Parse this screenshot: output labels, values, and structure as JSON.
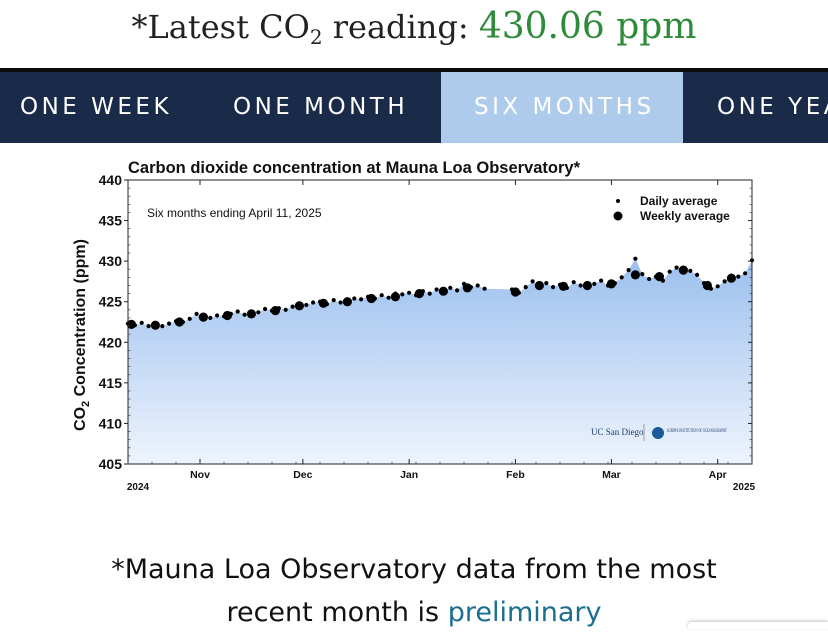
{
  "header": {
    "prefix": "*Latest CO",
    "subscript": "2",
    "suffix": " reading: ",
    "value": "430.06 ppm",
    "value_color": "#2e8b3a"
  },
  "tabs": [
    {
      "label": "ONE WEEK",
      "active": false
    },
    {
      "label": "ONE MONTH",
      "active": false
    },
    {
      "label": "SIX MONTHS",
      "active": true
    },
    {
      "label": "ONE YEAR",
      "active": false
    }
  ],
  "chart_data": {
    "type": "scatter",
    "title": "Carbon dioxide concentration at Mauna Loa Observatory*",
    "subtitle": "Six months ending April 11, 2025",
    "ylabel_prefix": "CO",
    "ylabel_sub": "2",
    "ylabel_suffix": " Concentration (ppm)",
    "ylim": [
      405,
      440
    ],
    "yticks": [
      405,
      410,
      415,
      420,
      425,
      430,
      435,
      440
    ],
    "xlim": [
      "2024-10-11",
      "2025-04-11"
    ],
    "xticks": [
      {
        "date": "2024-11-01",
        "label": "Nov"
      },
      {
        "date": "2024-12-01",
        "label": "Dec"
      },
      {
        "date": "2025-01-01",
        "label": "Jan"
      },
      {
        "date": "2025-02-01",
        "label": "Feb"
      },
      {
        "date": "2025-03-01",
        "label": "Mar"
      },
      {
        "date": "2025-04-01",
        "label": "Apr"
      }
    ],
    "year_labels": [
      {
        "date": "2024-10-11",
        "label": "2024"
      },
      {
        "date": "2025-04-11",
        "label": "2025"
      }
    ],
    "legend": {
      "position": "top-right",
      "items": [
        "Daily average",
        "Weekly average"
      ]
    },
    "fill_color": "#a9c8ef",
    "series": [
      {
        "name": "Daily average",
        "x": [
          "2024-10-11",
          "2024-10-13",
          "2024-10-15",
          "2024-10-17",
          "2024-10-19",
          "2024-10-21",
          "2024-10-23",
          "2024-10-25",
          "2024-10-27",
          "2024-10-29",
          "2024-10-31",
          "2024-11-02",
          "2024-11-04",
          "2024-11-06",
          "2024-11-08",
          "2024-11-10",
          "2024-11-12",
          "2024-11-14",
          "2024-11-16",
          "2024-11-18",
          "2024-11-20",
          "2024-11-22",
          "2024-11-24",
          "2024-11-26",
          "2024-11-28",
          "2024-11-30",
          "2024-12-02",
          "2024-12-04",
          "2024-12-06",
          "2024-12-08",
          "2024-12-10",
          "2024-12-12",
          "2024-12-14",
          "2024-12-16",
          "2024-12-18",
          "2024-12-20",
          "2024-12-22",
          "2024-12-24",
          "2024-12-26",
          "2024-12-28",
          "2024-12-30",
          "2025-01-01",
          "2025-01-03",
          "2025-01-05",
          "2025-01-07",
          "2025-01-09",
          "2025-01-11",
          "2025-01-13",
          "2025-01-15",
          "2025-01-17",
          "2025-01-19",
          "2025-01-21",
          "2025-01-23",
          "2025-01-31",
          "2025-02-02",
          "2025-02-04",
          "2025-02-06",
          "2025-02-08",
          "2025-02-10",
          "2025-02-12",
          "2025-02-14",
          "2025-02-16",
          "2025-02-18",
          "2025-02-20",
          "2025-02-22",
          "2025-02-24",
          "2025-02-26",
          "2025-02-28",
          "2025-03-02",
          "2025-03-04",
          "2025-03-06",
          "2025-03-08",
          "2025-03-10",
          "2025-03-12",
          "2025-03-14",
          "2025-03-16",
          "2025-03-18",
          "2025-03-20",
          "2025-03-22",
          "2025-03-24",
          "2025-03-26",
          "2025-03-28",
          "2025-03-30",
          "2025-04-01",
          "2025-04-03",
          "2025-04-05",
          "2025-04-07",
          "2025-04-09",
          "2025-04-11"
        ],
        "values": [
          422.3,
          422.1,
          422.4,
          422.0,
          422.2,
          422.0,
          422.3,
          422.6,
          422.5,
          422.9,
          423.5,
          423.1,
          423.0,
          423.3,
          423.2,
          423.5,
          423.8,
          423.4,
          423.6,
          423.7,
          424.1,
          423.9,
          424.2,
          424.0,
          424.4,
          424.8,
          424.6,
          424.9,
          425.0,
          424.7,
          425.2,
          424.9,
          425.1,
          425.4,
          425.3,
          425.6,
          425.4,
          425.8,
          425.5,
          426.0,
          425.9,
          426.1,
          425.8,
          426.3,
          426.0,
          426.5,
          426.2,
          426.7,
          426.4,
          427.2,
          426.8,
          427.0,
          426.6,
          426.5,
          426.1,
          426.8,
          427.5,
          426.9,
          427.3,
          426.8,
          427.1,
          426.7,
          427.4,
          427.0,
          426.9,
          427.2,
          427.6,
          427.0,
          427.3,
          428.0,
          428.9,
          430.3,
          428.4,
          427.8,
          428.1,
          427.6,
          428.7,
          429.2,
          428.9,
          428.8,
          428.3,
          427.3,
          426.6,
          426.9,
          427.5,
          428.2,
          428.1,
          428.5,
          430.1
        ]
      },
      {
        "name": "Weekly average",
        "x": [
          "2024-10-12",
          "2024-10-19",
          "2024-10-26",
          "2024-11-02",
          "2024-11-09",
          "2024-11-16",
          "2024-11-23",
          "2024-11-30",
          "2024-12-07",
          "2024-12-14",
          "2024-12-21",
          "2024-12-28",
          "2025-01-04",
          "2025-01-11",
          "2025-01-18",
          "2025-02-01",
          "2025-02-08",
          "2025-02-15",
          "2025-02-22",
          "2025-03-01",
          "2025-03-08",
          "2025-03-15",
          "2025-03-22",
          "2025-03-29",
          "2025-04-05"
        ],
        "values": [
          422.2,
          422.1,
          422.5,
          423.1,
          423.3,
          423.5,
          423.9,
          424.5,
          424.8,
          425.0,
          425.4,
          425.6,
          426.0,
          426.3,
          426.7,
          426.2,
          427.0,
          426.9,
          427.0,
          427.2,
          428.3,
          428.1,
          428.9,
          427.0,
          427.9
        ]
      }
    ],
    "logos": [
      "UC San Diego",
      "SCRIPPS INSTITUTION OF OCEANOGRAPHY"
    ]
  },
  "footer": {
    "line1": "*Mauna Loa Observatory data from the most",
    "line2_prefix": "recent month is ",
    "link_text": "preliminary",
    "link_color": "#1a6e8f"
  }
}
